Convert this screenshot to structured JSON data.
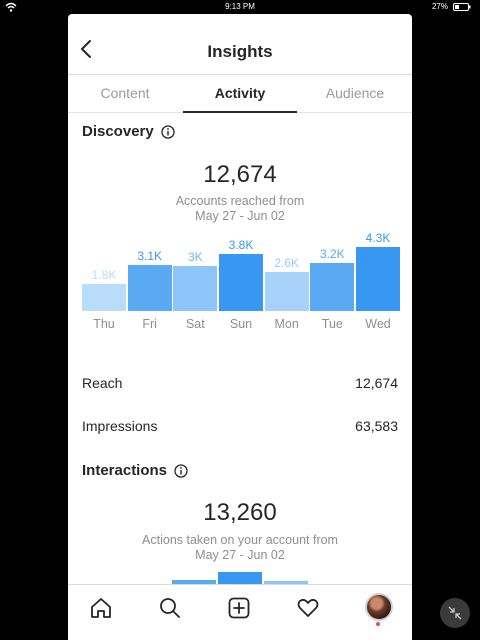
{
  "status_bar": {
    "time": "9:13 PM",
    "battery_pct": "27%"
  },
  "header": {
    "title": "Insights"
  },
  "tabs": [
    {
      "label": "Content",
      "active": false
    },
    {
      "label": "Activity",
      "active": true
    },
    {
      "label": "Audience",
      "active": false
    }
  ],
  "discovery": {
    "title": "Discovery",
    "accounts_reached": "12,674",
    "accounts_reached_label": "Accounts reached from",
    "date_range": "May 27 - Jun 02",
    "reach_label": "Reach",
    "reach_value": "12,674",
    "impressions_label": "Impressions",
    "impressions_value": "63,583"
  },
  "interactions": {
    "title": "Interactions",
    "actions_taken": "13,260",
    "actions_label": "Actions taken on your account from",
    "date_range": "May 27 - Jun 02"
  },
  "chart_data": {
    "type": "bar",
    "categories": [
      "Thu",
      "Fri",
      "Sat",
      "Sun",
      "Mon",
      "Tue",
      "Wed"
    ],
    "value_labels": [
      "1.8K",
      "3.1K",
      "3K",
      "3.8K",
      "2.6K",
      "3.2K",
      "4.3K"
    ],
    "values": [
      1.8,
      3.1,
      3.0,
      3.8,
      2.6,
      3.2,
      4.3
    ],
    "colors": [
      "#b9dcfb",
      "#5aa9f3",
      "#8ec5f8",
      "#3897f0",
      "#a9d2fa",
      "#5aa9f3",
      "#3897f0"
    ],
    "label_colors": [
      "#b9dcfb",
      "#3897f0",
      "#74b8f5",
      "#3897f0",
      "#9ccaf5",
      "#5aa9f3",
      "#3897f0"
    ],
    "ylim": [
      0,
      4.3
    ]
  },
  "colors": {
    "accent": "#3897f0",
    "text": "#262626",
    "muted": "#8e8e8e"
  },
  "nav": [
    "home-icon",
    "search-icon",
    "add-post-icon",
    "heart-icon",
    "profile-avatar"
  ],
  "icons": [
    "wifi-icon",
    "battery-icon",
    "back-chevron-icon",
    "info-icon",
    "collapse-arrows-icon"
  ]
}
